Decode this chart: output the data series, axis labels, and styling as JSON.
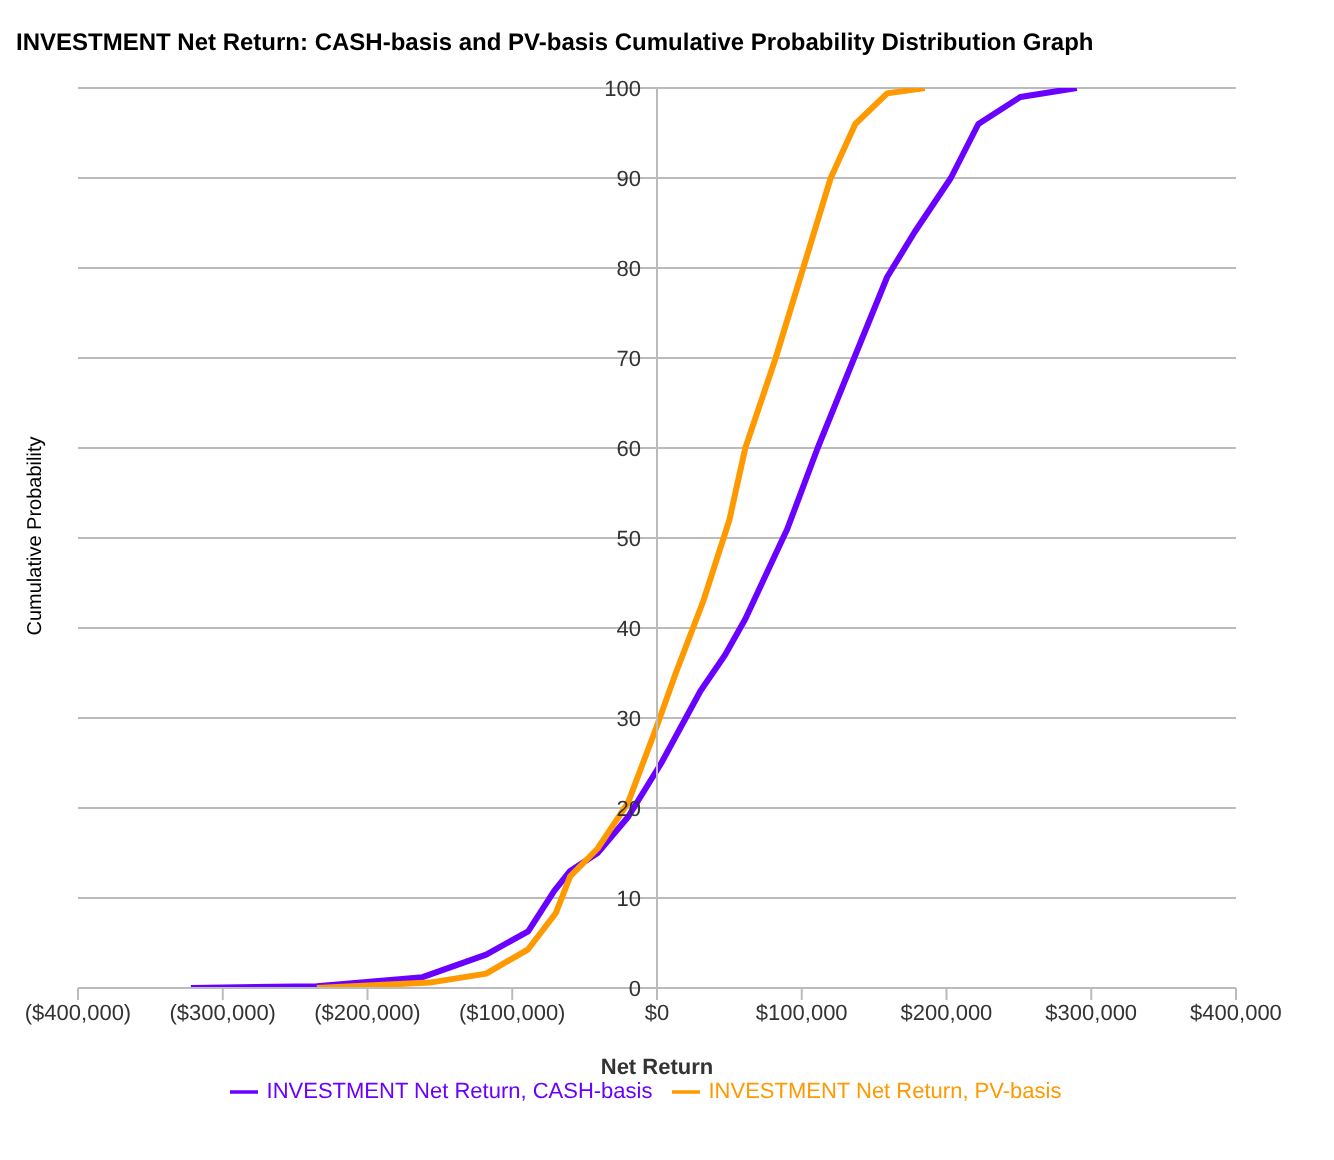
{
  "chart_data": {
    "type": "line",
    "title": "INVESTMENT Net Return: CASH-basis and PV-basis Cumulative Probability Distribution Graph",
    "xlabel": "Net Return",
    "ylabel": "Cumulative Probability",
    "xlim": [
      -400000,
      400000
    ],
    "xticks": [
      {
        "value": -400000,
        "label": "($400,000)"
      },
      {
        "value": -300000,
        "label": "($300,000)"
      },
      {
        "value": -200000,
        "label": "($200,000)"
      },
      {
        "value": -100000,
        "label": "($100,000)"
      },
      {
        "value": 0,
        "label": "$0"
      },
      {
        "value": 100000,
        "label": "$100,000"
      },
      {
        "value": 200000,
        "label": "$200,000"
      },
      {
        "value": 300000,
        "label": "$300,000"
      },
      {
        "value": 400000,
        "label": "$400,000"
      }
    ],
    "ylim": [
      0,
      100
    ],
    "yticks": [
      0,
      10,
      20,
      30,
      40,
      50,
      60,
      70,
      80,
      90,
      100
    ],
    "grid": "y",
    "legend": "bottom",
    "marker": "none",
    "line_style": "solid",
    "series": [
      {
        "name": "INVESTMENT Net Return, CASH-basis",
        "color": "#6a00ff",
        "x": [
          -322000,
          -235000,
          -162000,
          -118000,
          -89000,
          -71000,
          -60000,
          -41000,
          -20000,
          3000,
          30000,
          47000,
          61000,
          90000,
          111000,
          140000,
          159000,
          178000,
          203000,
          222000,
          251000,
          290000
        ],
        "values": [
          0,
          0.2,
          1.2,
          3.7,
          6.3,
          10.8,
          13,
          15,
          19,
          25,
          33,
          37,
          41,
          51,
          60,
          71.5,
          79,
          84,
          90,
          96,
          99,
          100
        ]
      },
      {
        "name": "INVESTMENT Net Return, PV-basis",
        "color": "#ff9900",
        "x": [
          -235000,
          -157000,
          -118000,
          -89000,
          -70000,
          -60000,
          -41000,
          -20000,
          -1000,
          13000,
          32000,
          50000,
          61000,
          82000,
          101000,
          120000,
          137000,
          159000,
          185000
        ],
        "values": [
          0,
          0.6,
          1.6,
          4.3,
          8.3,
          12.4,
          15.5,
          20.6,
          28.7,
          35,
          43,
          52,
          60,
          70,
          80,
          90,
          96,
          99.4,
          100
        ]
      }
    ]
  }
}
